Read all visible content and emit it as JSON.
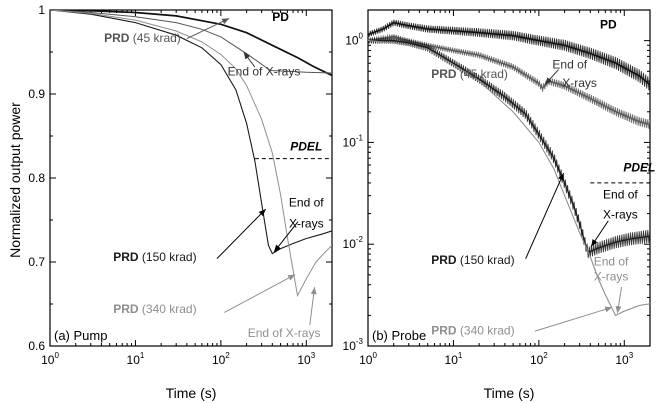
{
  "shared_ylabel": "Normalized output power",
  "colors": {
    "pd": "#111111",
    "prd45": "#555555",
    "prd150": "#1a1a1a",
    "prd340": "#8f8f8f",
    "axis": "#000000"
  },
  "chart_data": [
    {
      "type": "line",
      "panel": "a",
      "panel_label": "(a) Pump",
      "xlabel": "Time (s)",
      "x_scale": "log",
      "xlim": [
        1,
        2000
      ],
      "x_ticks": [
        1,
        10,
        100,
        1000
      ],
      "x_tick_labels": [
        [
          "10",
          "0"
        ],
        [
          "10",
          "1"
        ],
        [
          "10",
          "2"
        ],
        [
          "10",
          "3"
        ]
      ],
      "y_scale": "linear",
      "ylim": [
        0.6,
        1.0
      ],
      "y_ticks": [
        0.6,
        0.7,
        0.8,
        0.9,
        1.0
      ],
      "y_tick_labels": [
        "0.6",
        "0.7",
        "0.8",
        "0.9",
        "1"
      ],
      "series": [
        {
          "key": "pd",
          "name": "PD",
          "color": "#111111",
          "width": 1.7,
          "x": [
            1,
            3,
            10,
            30,
            100,
            200,
            400,
            800,
            1200,
            2000
          ],
          "y": [
            1.0,
            0.999,
            0.997,
            0.993,
            0.983,
            0.973,
            0.958,
            0.943,
            0.933,
            0.922
          ]
        },
        {
          "key": "prd45",
          "name": "PRD (45 krad)",
          "color": "#555555",
          "width": 1.0,
          "x": [
            1,
            3,
            10,
            30,
            60,
            100,
            200,
            380,
            600,
            1000,
            2000
          ],
          "y": [
            1.0,
            0.997,
            0.992,
            0.985,
            0.977,
            0.968,
            0.948,
            0.928,
            0.927,
            0.926,
            0.925
          ]
        },
        {
          "key": "prd150",
          "name": "PRD (150 krad)",
          "color": "#1a1a1a",
          "width": 1.1,
          "x": [
            1,
            3,
            10,
            30,
            60,
            100,
            150,
            200,
            250,
            300,
            360,
            400,
            500,
            700,
            1000,
            1500,
            2000
          ],
          "y": [
            1.0,
            0.995,
            0.985,
            0.97,
            0.955,
            0.935,
            0.905,
            0.865,
            0.82,
            0.77,
            0.72,
            0.71,
            0.716,
            0.722,
            0.728,
            0.733,
            0.737
          ]
        },
        {
          "key": "prd340",
          "name": "PRD (340 krad)",
          "color": "#8f8f8f",
          "width": 1.0,
          "x": [
            1,
            3,
            10,
            30,
            60,
            100,
            150,
            200,
            300,
            400,
            500,
            600,
            700,
            790,
            1000,
            1300,
            1600,
            2000
          ],
          "y": [
            1.0,
            0.996,
            0.988,
            0.975,
            0.962,
            0.947,
            0.93,
            0.91,
            0.87,
            0.83,
            0.78,
            0.73,
            0.69,
            0.66,
            0.68,
            0.7,
            0.71,
            0.72
          ]
        }
      ],
      "annotations": [
        {
          "name": "pd-label",
          "text": "PD",
          "x": 500,
          "y": 0.987,
          "bold": true,
          "italic": false,
          "color": "#000000"
        },
        {
          "name": "pdel-label",
          "text": "PDEL",
          "x": 1000,
          "y": 0.833,
          "bold": true,
          "italic": true,
          "color": "#000000"
        },
        {
          "name": "end-xrays-1a",
          "text": "End of X-rays",
          "x": 320,
          "y": 0.922,
          "bold": false,
          "italic": false,
          "color": "#333333"
        },
        {
          "name": "end-xrays-2a-line1",
          "text": "End of",
          "x": 1000,
          "y": 0.766,
          "bold": false,
          "italic": false,
          "color": "#000000"
        },
        {
          "name": "end-xrays-2a-line2",
          "text": "X-rays",
          "x": 1000,
          "y": 0.741,
          "bold": false,
          "italic": false,
          "color": "#000000"
        },
        {
          "name": "end-xrays-3a",
          "text": "End of X-rays",
          "x": 550,
          "y": 0.611,
          "bold": false,
          "italic": false,
          "color": "#8f8f8f"
        }
      ],
      "series_labels": [
        {
          "name": "prd45-label",
          "bold": "PRD",
          "rest": " (45 krad)",
          "x": 4.3,
          "y": 0.962,
          "color": "#555555"
        },
        {
          "name": "prd150-label",
          "bold": "PRD",
          "rest": " (150 krad)",
          "x": 5.5,
          "y": 0.701,
          "color": "#1a1a1a"
        },
        {
          "name": "prd340-label",
          "bold": "PRD",
          "rest": " (340 krad)",
          "x": 5.5,
          "y": 0.639,
          "color": "#8f8f8f"
        }
      ],
      "arrows": [
        {
          "name": "arrow-end-xrays-1a",
          "from": [
            250,
            0.932
          ],
          "to": [
            185,
            0.95
          ],
          "color": "#333333"
        },
        {
          "name": "arrow-prd45",
          "from": [
            40,
            0.966
          ],
          "to": [
            125,
            0.99
          ],
          "color": "#555555"
        },
        {
          "name": "arrow-end-xrays-2a",
          "from": [
            800,
            0.748
          ],
          "to": [
            420,
            0.712
          ],
          "color": "#000000"
        },
        {
          "name": "arrow-prd150",
          "from": [
            90,
            0.704
          ],
          "to": [
            335,
            0.763
          ],
          "color": "#000000"
        },
        {
          "name": "arrow-prd340",
          "from": [
            110,
            0.64
          ],
          "to": [
            740,
            0.685
          ],
          "color": "#8f8f8f"
        },
        {
          "name": "arrow-end-xrays-3a",
          "from": [
            1100,
            0.625
          ],
          "to": [
            1250,
            0.67
          ],
          "color": "#8f8f8f"
        }
      ],
      "dashes": [
        {
          "name": "pdel-dash-a",
          "x": [
            250,
            2000
          ],
          "y": 0.823
        }
      ]
    },
    {
      "type": "line",
      "panel": "b",
      "panel_label": "(b) Probe",
      "xlabel": "Time (s)",
      "x_scale": "log",
      "xlim": [
        1,
        2000
      ],
      "x_ticks": [
        1,
        10,
        100,
        1000
      ],
      "x_tick_labels": [
        [
          "10",
          "0"
        ],
        [
          "10",
          "1"
        ],
        [
          "10",
          "2"
        ],
        [
          "10",
          "3"
        ]
      ],
      "y_scale": "log",
      "ylim": [
        0.001,
        2
      ],
      "y_ticks": [
        0.001,
        0.01,
        0.1,
        1
      ],
      "y_tick_labels": [
        [
          "10",
          "-3"
        ],
        [
          "10",
          "-2"
        ],
        [
          "10",
          "-1"
        ],
        [
          "10",
          "0"
        ]
      ],
      "series": [
        {
          "key": "pd",
          "name": "PD",
          "color": "#111111",
          "width": 1.5,
          "band": 0.16,
          "x": [
            1,
            1.5,
            2,
            3,
            5,
            10,
            20,
            50,
            100,
            200,
            400,
            800,
            1500,
            2000
          ],
          "y": [
            1.15,
            1.3,
            1.5,
            1.4,
            1.3,
            1.25,
            1.2,
            1.12,
            1.0,
            0.9,
            0.75,
            0.6,
            0.45,
            0.37
          ]
        },
        {
          "key": "prd45",
          "name": "PRD (45 krad)",
          "color": "#555555",
          "width": 1.2,
          "band": 0.11,
          "x": [
            1,
            2,
            3,
            5,
            10,
            20,
            50,
            100,
            110,
            130,
            200,
            400,
            800,
            1500,
            2000
          ],
          "y": [
            1.0,
            1.1,
            1.0,
            0.9,
            0.8,
            0.72,
            0.55,
            0.38,
            0.34,
            0.4,
            0.36,
            0.27,
            0.2,
            0.16,
            0.15
          ]
        },
        {
          "key": "prd150",
          "name": "PRD (150 krad)",
          "color": "#1a1a1a",
          "width": 1.2,
          "band": 0.16,
          "x": [
            1,
            2,
            3,
            5,
            10,
            20,
            40,
            70,
            100,
            150,
            200,
            250,
            300,
            350,
            380,
            400,
            500,
            800,
            1200,
            2000
          ],
          "y": [
            1.0,
            1.0,
            0.95,
            0.85,
            0.6,
            0.42,
            0.28,
            0.19,
            0.12,
            0.07,
            0.04,
            0.025,
            0.016,
            0.01,
            0.0082,
            0.0085,
            0.0092,
            0.0105,
            0.0113,
            0.012
          ]
        },
        {
          "key": "prd340",
          "name": "PRD (340 krad)",
          "color": "#8f8f8f",
          "width": 1.1,
          "band": 0,
          "x": [
            1,
            2,
            3,
            5,
            10,
            20,
            50,
            100,
            150,
            200,
            300,
            400,
            500,
            600,
            790,
            1000,
            1500,
            2000
          ],
          "y": [
            1.0,
            0.95,
            0.9,
            0.82,
            0.58,
            0.4,
            0.2,
            0.1,
            0.055,
            0.03,
            0.013,
            0.0075,
            0.0045,
            0.0032,
            0.002,
            0.0022,
            0.0025,
            0.0026
          ]
        }
      ],
      "annotations": [
        {
          "name": "pd-label-b",
          "text": "PD",
          "x": 650,
          "y": 1.32,
          "bold": true,
          "italic": false,
          "color": "#000000"
        },
        {
          "name": "pdel-label-b",
          "text": "PDEL",
          "x": 1500,
          "y": 0.052,
          "bold": true,
          "italic": true,
          "color": "#000000"
        },
        {
          "name": "end-xrays-1b-line1",
          "text": "End of",
          "x": 230,
          "y": 0.53,
          "bold": false,
          "italic": false,
          "color": "#333333"
        },
        {
          "name": "end-xrays-1b-line2",
          "text": "X-rays",
          "x": 300,
          "y": 0.35,
          "bold": false,
          "italic": false,
          "color": "#333333"
        },
        {
          "name": "end-xrays-2b-line1",
          "text": "End of",
          "x": 900,
          "y": 0.028,
          "bold": false,
          "italic": false,
          "color": "#000000"
        },
        {
          "name": "end-xrays-2b-line2",
          "text": "X-rays",
          "x": 900,
          "y": 0.0178,
          "bold": false,
          "italic": false,
          "color": "#000000"
        },
        {
          "name": "end-xrays-3b-line1",
          "text": "End of",
          "x": 700,
          "y": 0.0062,
          "bold": false,
          "italic": false,
          "color": "#8f8f8f"
        },
        {
          "name": "end-xrays-3b-line2",
          "text": "X-rays",
          "x": 700,
          "y": 0.0044,
          "bold": false,
          "italic": false,
          "color": "#8f8f8f"
        }
      ],
      "series_labels": [
        {
          "name": "prd45-label-b",
          "bold": "PRD",
          "rest": " (45 krad)",
          "x": 5.5,
          "y": 0.43,
          "color": "#555555"
        },
        {
          "name": "prd150-label-b",
          "bold": "PRD",
          "rest": " (150 krad)",
          "x": 5.5,
          "y": 0.0064,
          "color": "#1a1a1a"
        },
        {
          "name": "prd340-label-b",
          "bold": "PRD",
          "rest": " (340 krad)",
          "x": 5.5,
          "y": 0.0013,
          "color": "#8f8f8f"
        }
      ],
      "arrows": [
        {
          "name": "arrow-end-xrays-1b",
          "from": [
            170,
            0.52
          ],
          "to": [
            118,
            0.37
          ],
          "color": "#333333"
        },
        {
          "name": "arrow-prd150-b",
          "from": [
            70,
            0.0072
          ],
          "to": [
            195,
            0.05
          ],
          "color": "#000000"
        },
        {
          "name": "arrow-end-xrays-2b",
          "from": [
            650,
            0.017
          ],
          "to": [
            410,
            0.0095
          ],
          "color": "#000000"
        },
        {
          "name": "arrow-prd340-b",
          "from": [
            90,
            0.0014
          ],
          "to": [
            720,
            0.0024
          ],
          "color": "#8f8f8f"
        },
        {
          "name": "arrow-end-xrays-3b",
          "from": [
            930,
            0.0038
          ],
          "to": [
            830,
            0.0021
          ],
          "color": "#8f8f8f"
        }
      ],
      "dashes": [
        {
          "name": "pdel-dash-b",
          "x": [
            400,
            2000
          ],
          "y": 0.04
        }
      ]
    }
  ]
}
